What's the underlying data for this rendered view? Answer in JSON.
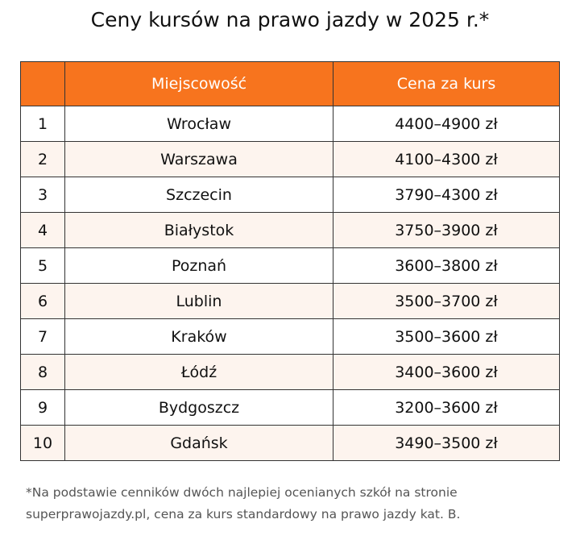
{
  "title": "Ceny kursów na prawo jazdy w 2025 r.*",
  "table": {
    "headers": [
      "",
      "Miejscowość",
      "Cena za kurs"
    ],
    "rows": [
      {
        "num": "1",
        "city": "Wrocław",
        "price": "4400–4900 zł"
      },
      {
        "num": "2",
        "city": "Warszawa",
        "price": "4100–4300 zł"
      },
      {
        "num": "3",
        "city": "Szczecin",
        "price": "3790–4300 zł"
      },
      {
        "num": "4",
        "city": "Białystok",
        "price": "3750–3900 zł"
      },
      {
        "num": "5",
        "city": "Poznań",
        "price": "3600–3800 zł"
      },
      {
        "num": "6",
        "city": "Lublin",
        "price": "3500–3700 zł"
      },
      {
        "num": "7",
        "city": "Kraków",
        "price": "3500–3600 zł"
      },
      {
        "num": "8",
        "city": "Łódź",
        "price": "3400–3600 zł"
      },
      {
        "num": "9",
        "city": "Bydgoszcz",
        "price": "3200–3600 zł"
      },
      {
        "num": "10",
        "city": "Gdańsk",
        "price": "3490–3500 zł"
      }
    ]
  },
  "footnote": {
    "line1": "*Na podstawie cenników dwóch najlepiej ocenianych szkół na stronie",
    "line2": "superprawojazdy.pl, cena za kurs standardowy na prawo jazdy kat. B."
  },
  "colors": {
    "header_bg": "#f7741e",
    "header_text": "#ffffff",
    "alt_row_bg": "#fdf4ee",
    "border": "#333333"
  }
}
